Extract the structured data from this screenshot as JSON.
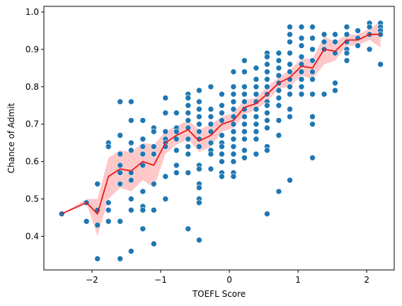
{
  "chart_data": {
    "type": "scatter",
    "xlabel": "TOEFL Score",
    "ylabel": "Chance of Admit",
    "xlim": [
      -2.7,
      2.4
    ],
    "ylim": [
      0.31,
      1.015
    ],
    "x_ticks": [
      -2,
      -1,
      0,
      1,
      2
    ],
    "x_tick_labels": [
      "−2",
      "−1",
      "0",
      "1",
      "2"
    ],
    "y_ticks": [
      0.4,
      0.5,
      0.6,
      0.7,
      0.8,
      0.9,
      1.0
    ],
    "y_tick_labels": [
      "0.4",
      "0.5",
      "0.6",
      "0.7",
      "0.8",
      "0.9",
      "1.0"
    ],
    "grid": false,
    "legend": "none",
    "colors": {
      "points": "#1f77b4",
      "trend": "#e8191b",
      "band": "#ff9a9a"
    },
    "points": [
      [
        -2.44,
        0.46
      ],
      [
        -2.08,
        0.49
      ],
      [
        -2.08,
        0.44
      ],
      [
        -1.92,
        0.54
      ],
      [
        -1.92,
        0.47
      ],
      [
        -1.92,
        0.43
      ],
      [
        -1.92,
        0.34
      ],
      [
        -1.76,
        0.65
      ],
      [
        -1.76,
        0.64
      ],
      [
        -1.76,
        0.49
      ],
      [
        -1.76,
        0.47
      ],
      [
        -1.76,
        0.44
      ],
      [
        -1.59,
        0.76
      ],
      [
        -1.59,
        0.67
      ],
      [
        -1.59,
        0.62
      ],
      [
        -1.59,
        0.59
      ],
      [
        -1.59,
        0.57
      ],
      [
        -1.59,
        0.54
      ],
      [
        -1.59,
        0.44
      ],
      [
        -1.59,
        0.34
      ],
      [
        -1.43,
        0.76
      ],
      [
        -1.43,
        0.71
      ],
      [
        -1.43,
        0.65
      ],
      [
        -1.43,
        0.63
      ],
      [
        -1.43,
        0.57
      ],
      [
        -1.43,
        0.55
      ],
      [
        -1.43,
        0.5
      ],
      [
        -1.43,
        0.47
      ],
      [
        -1.43,
        0.36
      ],
      [
        -1.26,
        0.71
      ],
      [
        -1.26,
        0.66
      ],
      [
        -1.26,
        0.64
      ],
      [
        -1.26,
        0.62
      ],
      [
        -1.26,
        0.59
      ],
      [
        -1.26,
        0.52
      ],
      [
        -1.26,
        0.48
      ],
      [
        -1.26,
        0.47
      ],
      [
        -1.26,
        0.42
      ],
      [
        -1.1,
        0.69
      ],
      [
        -1.1,
        0.68
      ],
      [
        -1.1,
        0.64
      ],
      [
        -1.1,
        0.62
      ],
      [
        -1.1,
        0.54
      ],
      [
        -1.1,
        0.47
      ],
      [
        -1.1,
        0.38
      ],
      [
        -0.93,
        0.77
      ],
      [
        -0.93,
        0.73
      ],
      [
        -0.93,
        0.68
      ],
      [
        -0.93,
        0.66
      ],
      [
        -0.93,
        0.65
      ],
      [
        -0.93,
        0.64
      ],
      [
        -0.93,
        0.56
      ],
      [
        -0.93,
        0.5
      ],
      [
        -0.77,
        0.73
      ],
      [
        -0.77,
        0.69
      ],
      [
        -0.77,
        0.68
      ],
      [
        -0.77,
        0.66
      ],
      [
        -0.77,
        0.63
      ],
      [
        -0.77,
        0.59
      ],
      [
        -0.77,
        0.57
      ],
      [
        -0.6,
        0.78
      ],
      [
        -0.6,
        0.77
      ],
      [
        -0.6,
        0.75
      ],
      [
        -0.6,
        0.73
      ],
      [
        -0.6,
        0.71
      ],
      [
        -0.6,
        0.69
      ],
      [
        -0.6,
        0.66
      ],
      [
        -0.6,
        0.64
      ],
      [
        -0.6,
        0.62
      ],
      [
        -0.6,
        0.57
      ],
      [
        -0.6,
        0.42
      ],
      [
        -0.44,
        0.79
      ],
      [
        -0.44,
        0.76
      ],
      [
        -0.44,
        0.74
      ],
      [
        -0.44,
        0.72
      ],
      [
        -0.44,
        0.7
      ],
      [
        -0.44,
        0.68
      ],
      [
        -0.44,
        0.66
      ],
      [
        -0.44,
        0.64
      ],
      [
        -0.44,
        0.59
      ],
      [
        -0.44,
        0.58
      ],
      [
        -0.44,
        0.54
      ],
      [
        -0.44,
        0.53
      ],
      [
        -0.44,
        0.5
      ],
      [
        -0.44,
        0.49
      ],
      [
        -0.44,
        0.39
      ],
      [
        -0.27,
        0.8
      ],
      [
        -0.27,
        0.74
      ],
      [
        -0.27,
        0.72
      ],
      [
        -0.27,
        0.7
      ],
      [
        -0.27,
        0.68
      ],
      [
        -0.27,
        0.65
      ],
      [
        -0.27,
        0.63
      ],
      [
        -0.27,
        0.62
      ],
      [
        -0.27,
        0.58
      ],
      [
        -0.11,
        0.78
      ],
      [
        -0.11,
        0.75
      ],
      [
        -0.11,
        0.73
      ],
      [
        -0.11,
        0.71
      ],
      [
        -0.11,
        0.67
      ],
      [
        -0.11,
        0.65
      ],
      [
        -0.11,
        0.64
      ],
      [
        -0.11,
        0.62
      ],
      [
        -0.11,
        0.6
      ],
      [
        -0.11,
        0.57
      ],
      [
        -0.11,
        0.56
      ],
      [
        0.06,
        0.84
      ],
      [
        0.06,
        0.8
      ],
      [
        0.06,
        0.78
      ],
      [
        0.06,
        0.76
      ],
      [
        0.06,
        0.74
      ],
      [
        0.06,
        0.72
      ],
      [
        0.06,
        0.7
      ],
      [
        0.06,
        0.68
      ],
      [
        0.06,
        0.66
      ],
      [
        0.06,
        0.64
      ],
      [
        0.06,
        0.62
      ],
      [
        0.06,
        0.6
      ],
      [
        0.06,
        0.57
      ],
      [
        0.06,
        0.56
      ],
      [
        0.22,
        0.87
      ],
      [
        0.22,
        0.84
      ],
      [
        0.22,
        0.8
      ],
      [
        0.22,
        0.78
      ],
      [
        0.22,
        0.76
      ],
      [
        0.22,
        0.74
      ],
      [
        0.22,
        0.72
      ],
      [
        0.22,
        0.7
      ],
      [
        0.22,
        0.68
      ],
      [
        0.22,
        0.66
      ],
      [
        0.22,
        0.63
      ],
      [
        0.22,
        0.61
      ],
      [
        0.39,
        0.85
      ],
      [
        0.39,
        0.82
      ],
      [
        0.39,
        0.8
      ],
      [
        0.39,
        0.78
      ],
      [
        0.39,
        0.76
      ],
      [
        0.39,
        0.74
      ],
      [
        0.39,
        0.72
      ],
      [
        0.39,
        0.7
      ],
      [
        0.39,
        0.68
      ],
      [
        0.39,
        0.66
      ],
      [
        0.39,
        0.62
      ],
      [
        0.55,
        0.89
      ],
      [
        0.55,
        0.88
      ],
      [
        0.55,
        0.86
      ],
      [
        0.55,
        0.84
      ],
      [
        0.55,
        0.82
      ],
      [
        0.55,
        0.8
      ],
      [
        0.55,
        0.78
      ],
      [
        0.55,
        0.76
      ],
      [
        0.55,
        0.75
      ],
      [
        0.55,
        0.73
      ],
      [
        0.55,
        0.71
      ],
      [
        0.55,
        0.69
      ],
      [
        0.55,
        0.64
      ],
      [
        0.55,
        0.63
      ],
      [
        0.55,
        0.46
      ],
      [
        0.72,
        0.89
      ],
      [
        0.72,
        0.87
      ],
      [
        0.72,
        0.85
      ],
      [
        0.72,
        0.83
      ],
      [
        0.72,
        0.81
      ],
      [
        0.72,
        0.79
      ],
      [
        0.72,
        0.77
      ],
      [
        0.72,
        0.75
      ],
      [
        0.72,
        0.71
      ],
      [
        0.72,
        0.67
      ],
      [
        0.72,
        0.52
      ],
      [
        0.88,
        0.96
      ],
      [
        0.88,
        0.94
      ],
      [
        0.88,
        0.92
      ],
      [
        0.88,
        0.89
      ],
      [
        0.88,
        0.86
      ],
      [
        0.88,
        0.84
      ],
      [
        0.88,
        0.82
      ],
      [
        0.88,
        0.8
      ],
      [
        0.88,
        0.78
      ],
      [
        0.88,
        0.74
      ],
      [
        0.88,
        0.72
      ],
      [
        0.88,
        0.55
      ],
      [
        1.05,
        0.96
      ],
      [
        1.05,
        0.93
      ],
      [
        1.05,
        0.91
      ],
      [
        1.05,
        0.88
      ],
      [
        1.05,
        0.86
      ],
      [
        1.05,
        0.84
      ],
      [
        1.05,
        0.82
      ],
      [
        1.05,
        0.8
      ],
      [
        1.05,
        0.78
      ],
      [
        1.21,
        0.96
      ],
      [
        1.21,
        0.93
      ],
      [
        1.21,
        0.9
      ],
      [
        1.21,
        0.87
      ],
      [
        1.21,
        0.84
      ],
      [
        1.21,
        0.82
      ],
      [
        1.21,
        0.78
      ],
      [
        1.21,
        0.72
      ],
      [
        1.21,
        0.7
      ],
      [
        1.21,
        0.61
      ],
      [
        1.38,
        0.94
      ],
      [
        1.38,
        0.92
      ],
      [
        1.38,
        0.9
      ],
      [
        1.38,
        0.78
      ],
      [
        1.54,
        0.94
      ],
      [
        1.54,
        0.92
      ],
      [
        1.54,
        0.89
      ],
      [
        1.54,
        0.81
      ],
      [
        1.54,
        0.79
      ],
      [
        1.71,
        0.96
      ],
      [
        1.71,
        0.94
      ],
      [
        1.71,
        0.92
      ],
      [
        1.71,
        0.9
      ],
      [
        1.71,
        0.89
      ],
      [
        1.71,
        0.87
      ],
      [
        1.87,
        0.95
      ],
      [
        1.87,
        0.93
      ],
      [
        1.87,
        0.91
      ],
      [
        2.04,
        0.97
      ],
      [
        2.04,
        0.96
      ],
      [
        2.04,
        0.94
      ],
      [
        2.04,
        0.9
      ],
      [
        2.2,
        0.97
      ],
      [
        2.2,
        0.96
      ],
      [
        2.2,
        0.95
      ],
      [
        2.2,
        0.94
      ],
      [
        2.2,
        0.86
      ]
    ],
    "trend": {
      "x": [
        -2.44,
        -2.08,
        -1.92,
        -1.76,
        -1.59,
        -1.43,
        -1.26,
        -1.1,
        -0.93,
        -0.77,
        -0.6,
        -0.44,
        -0.27,
        -0.11,
        0.06,
        0.22,
        0.39,
        0.55,
        0.72,
        0.88,
        1.05,
        1.21,
        1.38,
        1.54,
        1.71,
        1.87,
        2.04,
        2.2
      ],
      "y": [
        0.46,
        0.49,
        0.46,
        0.56,
        0.58,
        0.575,
        0.6,
        0.59,
        0.65,
        0.67,
        0.685,
        0.655,
        0.67,
        0.7,
        0.71,
        0.745,
        0.755,
        0.78,
        0.81,
        0.825,
        0.855,
        0.85,
        0.9,
        0.895,
        0.925,
        0.925,
        0.94,
        0.94
      ],
      "low": [
        0.46,
        0.49,
        0.4,
        0.5,
        0.53,
        0.52,
        0.55,
        0.53,
        0.62,
        0.645,
        0.66,
        0.625,
        0.64,
        0.68,
        0.69,
        0.725,
        0.74,
        0.76,
        0.795,
        0.8,
        0.83,
        0.82,
        0.86,
        0.87,
        0.91,
        0.91,
        0.925,
        0.905
      ],
      "high": [
        0.46,
        0.5,
        0.5,
        0.61,
        0.63,
        0.625,
        0.65,
        0.645,
        0.68,
        0.695,
        0.71,
        0.685,
        0.7,
        0.72,
        0.73,
        0.765,
        0.77,
        0.8,
        0.825,
        0.845,
        0.875,
        0.875,
        0.935,
        0.92,
        0.94,
        0.94,
        0.955,
        0.975
      ]
    }
  }
}
